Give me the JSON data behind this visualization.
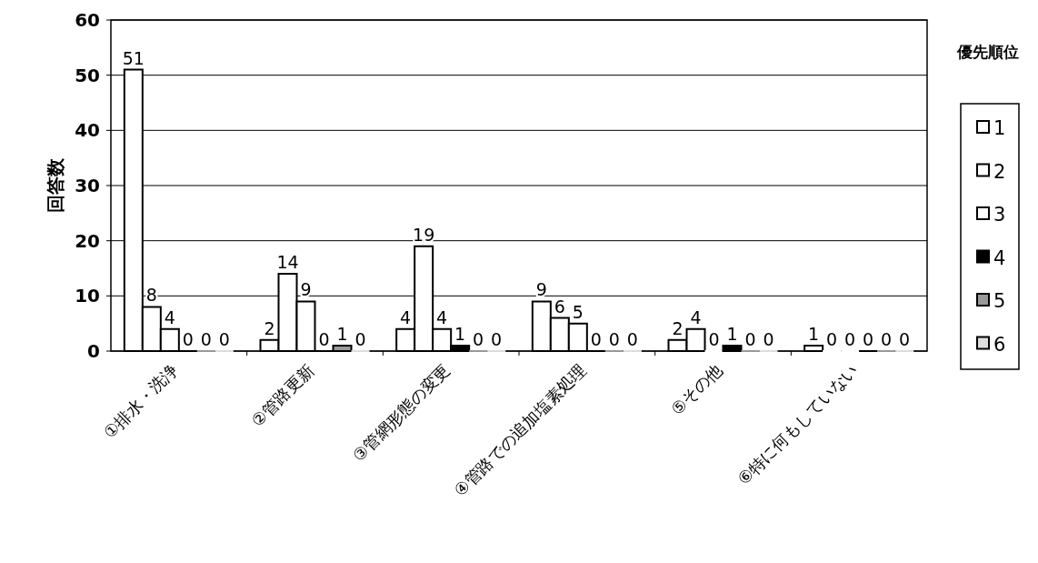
{
  "chart_data": {
    "type": "bar",
    "ylabel": "回答数",
    "legend_title": "優先順位",
    "categories": [
      "①排水・洗浄",
      "②管路更新",
      "③管網形態の変更",
      "④管路での追加塩素処理",
      "⑤その他",
      "⑥特に何もしていない"
    ],
    "series": [
      {
        "name": "1",
        "color": "#ffffff",
        "values": [
          51,
          2,
          4,
          9,
          2,
          1
        ]
      },
      {
        "name": "2",
        "color": "#ffffff",
        "values": [
          8,
          14,
          19,
          6,
          4,
          0
        ]
      },
      {
        "name": "3",
        "color": "#ffffff",
        "values": [
          4,
          9,
          4,
          5,
          0,
          0
        ]
      },
      {
        "name": "4",
        "color": "#000000",
        "values": [
          0,
          0,
          1,
          0,
          1,
          0
        ]
      },
      {
        "name": "5",
        "color": "#999999",
        "values": [
          0,
          1,
          0,
          0,
          0,
          0
        ]
      },
      {
        "name": "6",
        "color": "#dddddd",
        "values": [
          0,
          0,
          0,
          0,
          0,
          0
        ]
      }
    ],
    "ylim": [
      0,
      60
    ],
    "yticks": [
      0,
      10,
      20,
      30,
      40,
      50,
      60
    ],
    "grid": "y",
    "legend": "right",
    "data_labels": true
  }
}
